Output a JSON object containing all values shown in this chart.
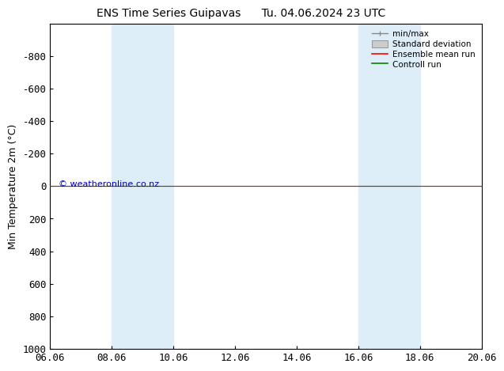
{
  "title": "ENS Time Series Guipavas      Tu. 04.06.2024 23 UTC",
  "ylabel": "Min Temperature 2m (°C)",
  "ylim_top": -1000,
  "ylim_bottom": 1000,
  "yticks": [
    -800,
    -600,
    -400,
    -200,
    0,
    200,
    400,
    600,
    800,
    1000
  ],
  "xtick_labels": [
    "06.06",
    "08.06",
    "10.06",
    "12.06",
    "14.06",
    "16.06",
    "18.06",
    "20.06"
  ],
  "xtick_positions": [
    0,
    2,
    4,
    6,
    8,
    10,
    12,
    14
  ],
  "blue_bands": [
    [
      2,
      3
    ],
    [
      3,
      4
    ],
    [
      10,
      11
    ],
    [
      11,
      12
    ]
  ],
  "blue_band_color": "#ddeef8",
  "control_run_y": 0,
  "ensemble_mean_y": 0,
  "control_run_color": "#008800",
  "ensemble_mean_color": "#ff0000",
  "watermark": "© weatheronline.co.nz",
  "watermark_color": "#0000bb",
  "background_color": "#ffffff",
  "xlim": [
    0,
    14
  ],
  "legend_minmax_color": "#888888",
  "legend_std_facecolor": "#cccccc",
  "legend_std_edgecolor": "#888888"
}
